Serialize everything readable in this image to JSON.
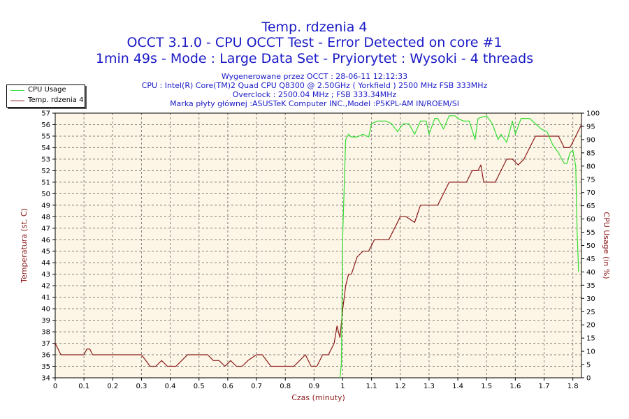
{
  "header": {
    "title": "Temp. rdzenia 4",
    "subtitle1": "OCCT 3.1.0 - CPU OCCT Test - Error Detected on core #1",
    "subtitle2": "1min 49s - Mode : Large Data Set - Pryiorytet : Wysoki - 4 threads",
    "info1": "Wygenerowane przez OCCT : 28-06-11 12:12:33",
    "info2": "CPU : Intel(R) Core(TM)2 Quad CPU Q8300 @ 2.50GHz ( Yorkfield ) 2500 MHz FSB 333MHz",
    "info3": "Overclock : 2500.04 MHz ; FSB 333.34MHz",
    "info4": "Marka płyty głównej :ASUSTeK Computer INC.,Model :P5KPL-AM IN/ROEM/SI"
  },
  "legend": [
    {
      "label": "CPU Usage",
      "color": "#33dd33"
    },
    {
      "label": "Temp. rdzenia 4",
      "color": "#8b1a1a"
    }
  ],
  "colors": {
    "background": "#fdf6e6",
    "grid": "#808080",
    "temp": "#8b1a1a",
    "cpu": "#33dd33"
  },
  "chart_data": {
    "type": "line",
    "xlabel": "Czas (minuty)",
    "ylabel_left": "Temperatura (st. C)",
    "ylabel_right": "CPU Usage (in %)",
    "xlim": [
      0,
      1.83
    ],
    "ylim_left": [
      34,
      57
    ],
    "ylim_right": [
      0,
      100
    ],
    "x_ticks": [
      "0",
      "0.1",
      "0.2",
      "0.3",
      "0.4",
      "0.5",
      "0.6",
      "0.7",
      "0.8",
      "0.9",
      "1",
      "1.1",
      "1.2",
      "1.3",
      "1.4",
      "1.5",
      "1.6",
      "1.7",
      "1.8"
    ],
    "y_ticks_left": [
      "34",
      "35",
      "36",
      "37",
      "38",
      "39",
      "40",
      "41",
      "42",
      "43",
      "44",
      "45",
      "46",
      "47",
      "48",
      "49",
      "50",
      "51",
      "52",
      "53",
      "54",
      "55",
      "56",
      "57"
    ],
    "y_ticks_right": [
      "0",
      "5",
      "10",
      "15",
      "20",
      "25",
      "30",
      "35",
      "40",
      "45",
      "50",
      "55",
      "60",
      "65",
      "70",
      "75",
      "80",
      "85",
      "90",
      "95",
      "100"
    ],
    "grid": true,
    "series": [
      {
        "name": "Temp. rdzenia 4",
        "axis": "left",
        "x": [
          0,
          0.02,
          0.05,
          0.1,
          0.11,
          0.12,
          0.13,
          0.2,
          0.3,
          0.33,
          0.35,
          0.37,
          0.39,
          0.42,
          0.44,
          0.46,
          0.5,
          0.53,
          0.55,
          0.57,
          0.59,
          0.61,
          0.63,
          0.65,
          0.67,
          0.7,
          0.72,
          0.75,
          0.78,
          0.8,
          0.83,
          0.85,
          0.87,
          0.89,
          0.91,
          0.93,
          0.95,
          0.97,
          0.98,
          0.99,
          1.0,
          1.01,
          1.02,
          1.03,
          1.05,
          1.07,
          1.09,
          1.11,
          1.14,
          1.16,
          1.18,
          1.2,
          1.22,
          1.25,
          1.27,
          1.3,
          1.33,
          1.35,
          1.37,
          1.39,
          1.41,
          1.43,
          1.45,
          1.47,
          1.48,
          1.49,
          1.5,
          1.53,
          1.55,
          1.57,
          1.59,
          1.61,
          1.63,
          1.65,
          1.67,
          1.7,
          1.75,
          1.77,
          1.79,
          1.81,
          1.82,
          1.83
        ],
        "values": [
          37,
          36,
          36,
          36,
          36.5,
          36.5,
          36,
          36,
          36,
          35,
          35,
          35.5,
          35,
          35,
          35.5,
          36,
          36,
          36,
          35.5,
          35.5,
          35,
          35.5,
          35,
          35,
          35.5,
          36,
          36,
          35,
          35,
          35,
          35,
          35.5,
          36,
          35,
          35,
          36,
          36,
          37,
          38.5,
          37.5,
          40,
          42,
          43,
          43,
          44.5,
          45,
          45,
          46,
          46,
          46,
          47,
          48,
          48,
          47.5,
          49,
          49,
          49,
          50,
          51,
          51,
          51,
          51,
          52,
          52,
          52.5,
          51,
          51,
          51,
          52,
          53,
          53,
          52.5,
          53,
          54,
          55,
          55,
          55,
          54,
          54,
          55,
          55.5,
          56
        ]
      },
      {
        "name": "CPU Usage",
        "axis": "right",
        "x": [
          0.99,
          0.995,
          1.0,
          1.01,
          1.02,
          1.03,
          1.05,
          1.07,
          1.09,
          1.1,
          1.12,
          1.15,
          1.17,
          1.19,
          1.21,
          1.23,
          1.25,
          1.27,
          1.29,
          1.3,
          1.32,
          1.33,
          1.35,
          1.37,
          1.39,
          1.4,
          1.42,
          1.44,
          1.46,
          1.47,
          1.5,
          1.52,
          1.54,
          1.55,
          1.57,
          1.59,
          1.6,
          1.62,
          1.65,
          1.67,
          1.69,
          1.71,
          1.73,
          1.75,
          1.77,
          1.78,
          1.79,
          1.8,
          1.81,
          1.815,
          1.82
        ],
        "values": [
          0,
          5,
          55,
          90,
          92,
          91,
          91,
          92,
          91,
          96,
          97,
          97,
          96,
          93,
          96,
          96,
          92,
          97,
          97,
          92,
          98,
          98,
          94,
          99,
          99,
          98,
          97,
          97,
          90,
          98,
          99,
          96,
          90,
          92,
          89,
          97,
          92,
          98,
          98,
          96,
          94,
          93,
          88,
          85,
          81,
          81,
          85,
          86,
          80,
          55,
          40
        ]
      }
    ]
  }
}
